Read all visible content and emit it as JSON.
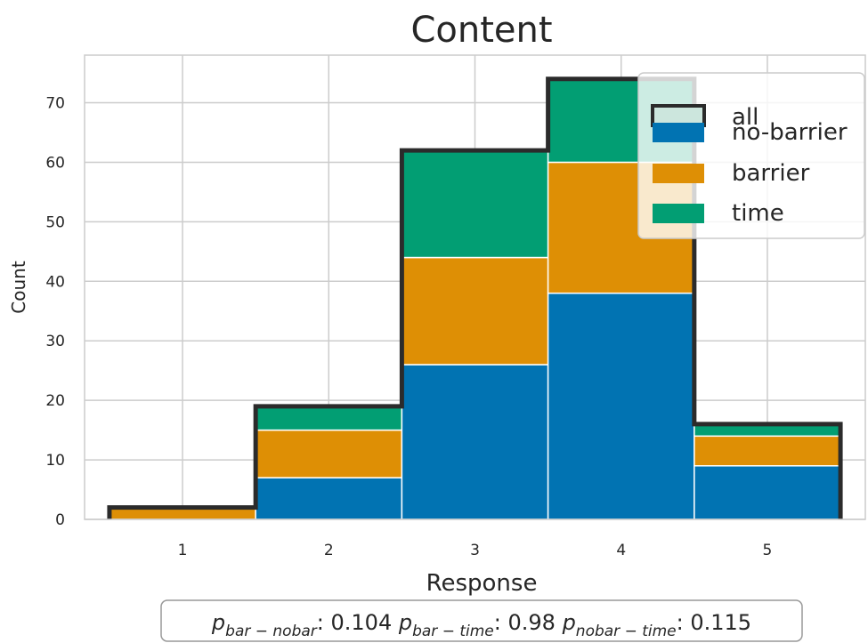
{
  "chart_data": {
    "type": "bar",
    "stacked": true,
    "title": "Content",
    "xlabel": "Response",
    "ylabel": "Count",
    "categories": [
      "1",
      "2",
      "3",
      "4",
      "5"
    ],
    "xlim": [
      0.33,
      5.67
    ],
    "ylim": [
      0,
      78
    ],
    "yticks": [
      0,
      10,
      20,
      30,
      40,
      50,
      60,
      70
    ],
    "grid": true,
    "legend_position": "top-right",
    "series": [
      {
        "name": "no-barrier",
        "color": "#0173b2",
        "values": [
          0,
          7,
          26,
          38,
          9
        ]
      },
      {
        "name": "barrier",
        "color": "#de8f05",
        "values": [
          2,
          8,
          18,
          22,
          5
        ]
      },
      {
        "name": "time",
        "color": "#029e73",
        "values": [
          0,
          4,
          18,
          14,
          2
        ]
      }
    ],
    "outline": {
      "name": "all",
      "values": [
        2,
        19,
        62,
        74,
        16
      ],
      "color": "#2b2b2b"
    },
    "stats": [
      {
        "symbol": "p",
        "subscript": "bar − nobar",
        "value": "0.104"
      },
      {
        "symbol": "p",
        "subscript": "bar − time",
        "value": "0.98"
      },
      {
        "symbol": "p",
        "subscript": "nobar − time",
        "value": "0.115"
      }
    ]
  }
}
